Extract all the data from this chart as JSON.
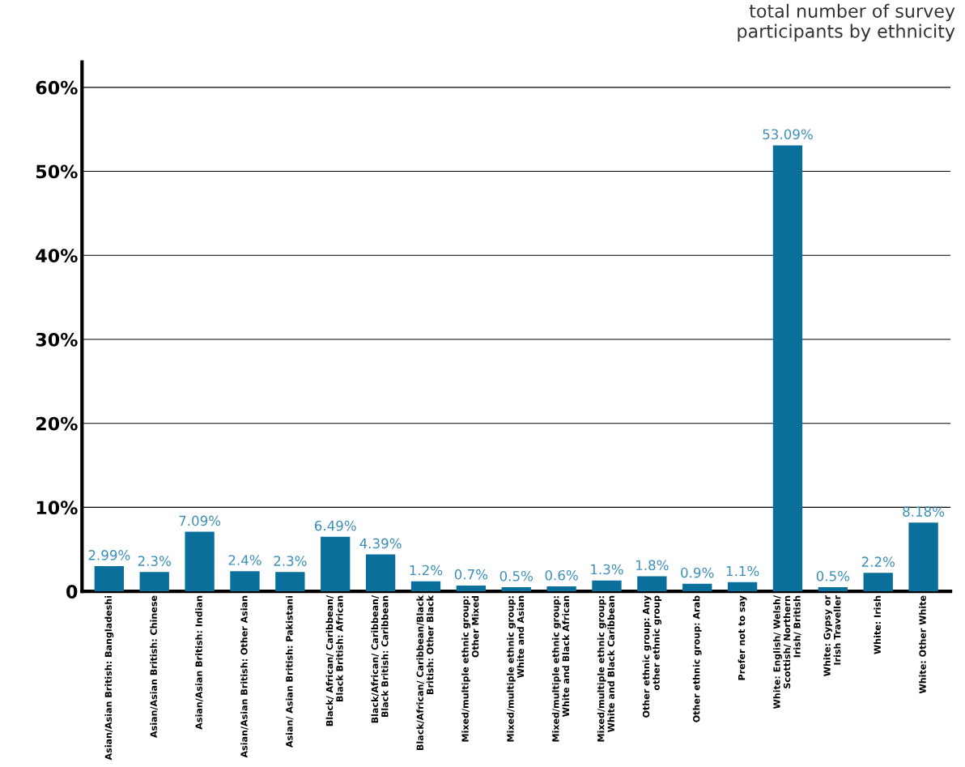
{
  "chart_data": {
    "type": "bar",
    "title": "total number of survey\nparticipants by ethnicity",
    "categories": [
      "Asian/Asian British: Bangladeshi",
      "Asian/Asian British: Chinese",
      "Asian/Asian British: Indian",
      "Asian/Asian British: Other Asian",
      "Asian/ Asian British: Pakistani",
      "Black/ African/ Caribbean/\nBlack British: African",
      "Black/African/ Caribbean/\nBlack British: Caribbean",
      "Black/African/ Caribbean/Black\nBritish: Other Black",
      "Mixed/multiple ethnic group:\nOther Mixed",
      "Mixed/multiple ethnic group:\nWhite and Asian",
      "Mixed/multiple ethnic group:\nWhite and Black African",
      "Mixed/multiple ethnic group:\nWhite and Black Caribbean",
      "Other ethnic group: Any\nother ethnic group",
      "Other ethnic group: Arab",
      "Prefer not to say",
      "White: English/ Welsh/\nScottish/ Northern\nIrish/ British",
      "White: Gypsy or\nIrish Traveller",
      "White: Irish",
      "White: Other White"
    ],
    "values": [
      2.99,
      2.3,
      7.09,
      2.4,
      2.3,
      6.49,
      4.39,
      1.2,
      0.7,
      0.5,
      0.6,
      1.3,
      1.8,
      0.9,
      1.1,
      53.09,
      0.5,
      2.2,
      8.18
    ],
    "value_labels": [
      "2.99%",
      "2.3%",
      "7.09%",
      "2.4%",
      "2.3%",
      "6.49%",
      "4.39%",
      "1.2%",
      "0.7%",
      "0.5%",
      "0.6%",
      "1.3%",
      "1.8%",
      "0.9%",
      "1.1%",
      "53.09%",
      "0.5%",
      "2.2%",
      "8.18%"
    ],
    "color": "#0a6f9a",
    "ylim": [
      0,
      63
    ],
    "yticks": [
      {
        "value": 0,
        "label": "0"
      },
      {
        "value": 10,
        "label": "10%"
      },
      {
        "value": 20,
        "label": "20%"
      },
      {
        "value": 30,
        "label": "30%"
      },
      {
        "value": 40,
        "label": "40%"
      },
      {
        "value": 50,
        "label": "50%"
      },
      {
        "value": 60,
        "label": "60%"
      }
    ],
    "grid": "y"
  }
}
